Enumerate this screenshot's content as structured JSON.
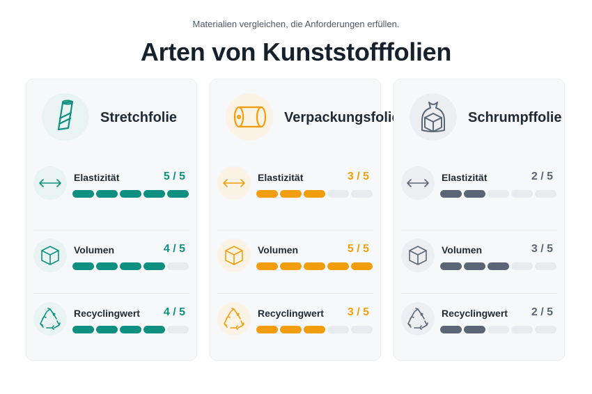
{
  "header": {
    "subtitle": "Materialien vergleichen, die Anforderungen erfüllen.",
    "title": "Arten von Kunststofffolien"
  },
  "cards": [
    {
      "name": "Stretchfolie",
      "icon": "stretch-roll-icon",
      "accent": "#0f8f80",
      "icon_bg": "#e9f3f2",
      "metrics": [
        {
          "label": "Elastizität",
          "score": "5 / 5",
          "value": 5,
          "max": 5,
          "icon": "arrows-horizontal-icon"
        },
        {
          "label": "Volumen",
          "score": "4 / 5",
          "value": 4,
          "max": 5,
          "icon": "cube-icon"
        },
        {
          "label": "Recyclingwert",
          "score": "4 / 5",
          "value": 4,
          "max": 5,
          "icon": "recycle-icon"
        }
      ]
    },
    {
      "name": "Verpackungsfolie",
      "icon": "packaging-roll-icon",
      "accent": "#f29e0c",
      "icon_bg": "#fbf3e6",
      "metrics": [
        {
          "label": "Elastizität",
          "score": "3 / 5",
          "value": 3,
          "max": 5,
          "icon": "arrows-horizontal-icon"
        },
        {
          "label": "Volumen",
          "score": "5 / 5",
          "value": 5,
          "max": 5,
          "icon": "cube-icon"
        },
        {
          "label": "Recyclingwert",
          "score": "3 / 5",
          "value": 3,
          "max": 5,
          "icon": "recycle-icon"
        }
      ]
    },
    {
      "name": "Schrumpffolie",
      "icon": "shrink-bag-icon",
      "accent": "#5a6675",
      "icon_bg": "#eceef1",
      "metrics": [
        {
          "label": "Elastizität",
          "score": "2 / 5",
          "value": 2,
          "max": 5,
          "icon": "arrows-horizontal-icon"
        },
        {
          "label": "Volumen",
          "score": "3 / 5",
          "value": 3,
          "max": 5,
          "icon": "cube-icon"
        },
        {
          "label": "Recyclingwert",
          "score": "2 / 5",
          "value": 2,
          "max": 5,
          "icon": "recycle-icon"
        }
      ]
    }
  ]
}
